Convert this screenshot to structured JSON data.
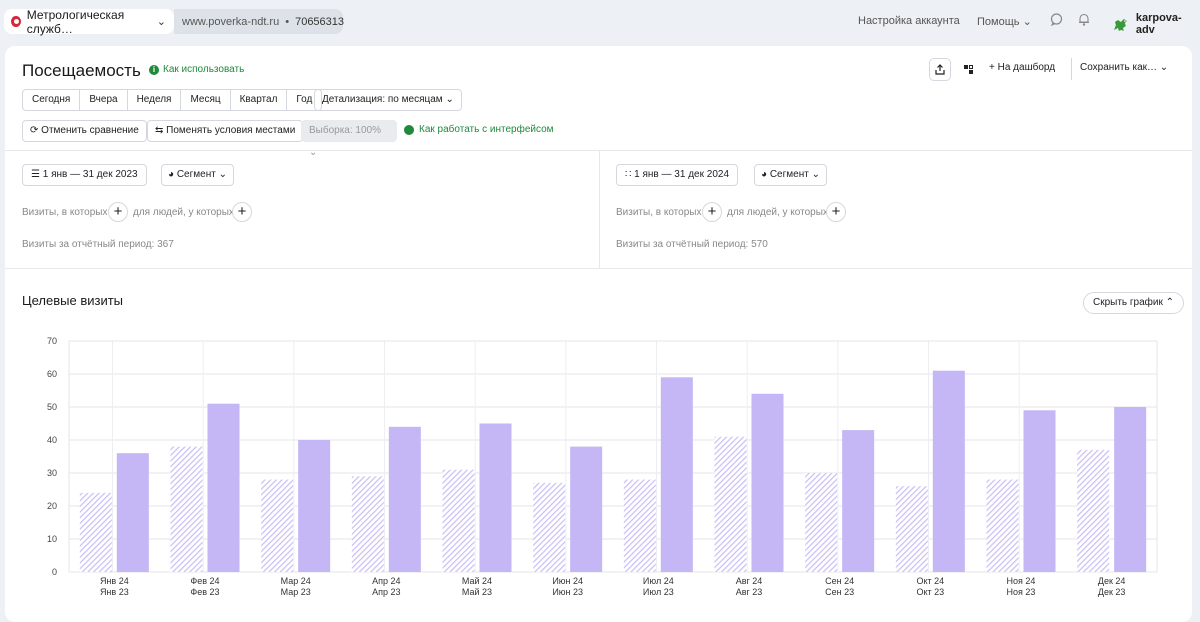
{
  "topbar": {
    "site_name": "Метрологическая служб…",
    "url": "www.poverka-ndt.ru",
    "separator": "•",
    "counter_id": "70656313",
    "account_settings": "Настройка аккаунта",
    "help": "Помощь",
    "user": "karpova-adv"
  },
  "header": {
    "title": "Посещаемость",
    "how_to_use": "Как использовать",
    "to_dashboard": "На дашборд",
    "save_as": "Сохранить как…"
  },
  "periods": [
    "Сегодня",
    "Вчера",
    "Неделя",
    "Месяц",
    "Квартал",
    "Год"
  ],
  "detail_label": "Детализация: по месяцам",
  "compare": {
    "cancel": "Отменить сравнение",
    "swap": "Поменять условия местами",
    "sample": "Выборка: 100%",
    "interface_help": "Как работать с интерфейсом"
  },
  "segments": [
    {
      "date": "1 янв — 31 дек 2023",
      "segment": "Сегмент",
      "visits_where": "Визиты, в которых",
      "people_where": "для людей, у которых",
      "total": "Визиты за отчётный период: 367"
    },
    {
      "date": "1 янв — 31 дек 2024",
      "segment": "Сегмент",
      "visits_where": "Визиты, в которых",
      "people_where": "для людей, у которых",
      "total": "Визиты за отчётный период: 570"
    }
  ],
  "chart_section": {
    "title": "Целевые визиты",
    "hide_chart": "Скрыть график"
  },
  "colors": {
    "bar_2024": "#c5b6f5",
    "bar_2023_hatch": "#c9bdf5",
    "green": "#1e8a3a"
  },
  "chart_data": {
    "type": "bar",
    "categories": [
      "Янв 24",
      "Фев 24",
      "Мар 24",
      "Апр 24",
      "Май 24",
      "Июн 24",
      "Июл 24",
      "Авг 24",
      "Сен 24",
      "Окт 24",
      "Ноя 24",
      "Дек 24"
    ],
    "categories_secondary": [
      "Янв 23",
      "Фев 23",
      "Мар 23",
      "Апр 23",
      "Май 23",
      "Июн 23",
      "Июл 23",
      "Авг 23",
      "Сен 23",
      "Окт 23",
      "Ноя 23",
      "Дек 23"
    ],
    "series": [
      {
        "values": [
          24,
          38,
          28,
          29,
          31,
          27,
          28,
          41,
          30,
          26,
          28,
          37
        ]
      },
      {
        "values": [
          36,
          51,
          40,
          44,
          45,
          38,
          59,
          54,
          43,
          61,
          49,
          50
        ]
      }
    ],
    "ylim": [
      0,
      70
    ],
    "yticks": [
      0,
      10,
      20,
      30,
      40,
      50,
      60,
      70
    ],
    "grid": true
  }
}
